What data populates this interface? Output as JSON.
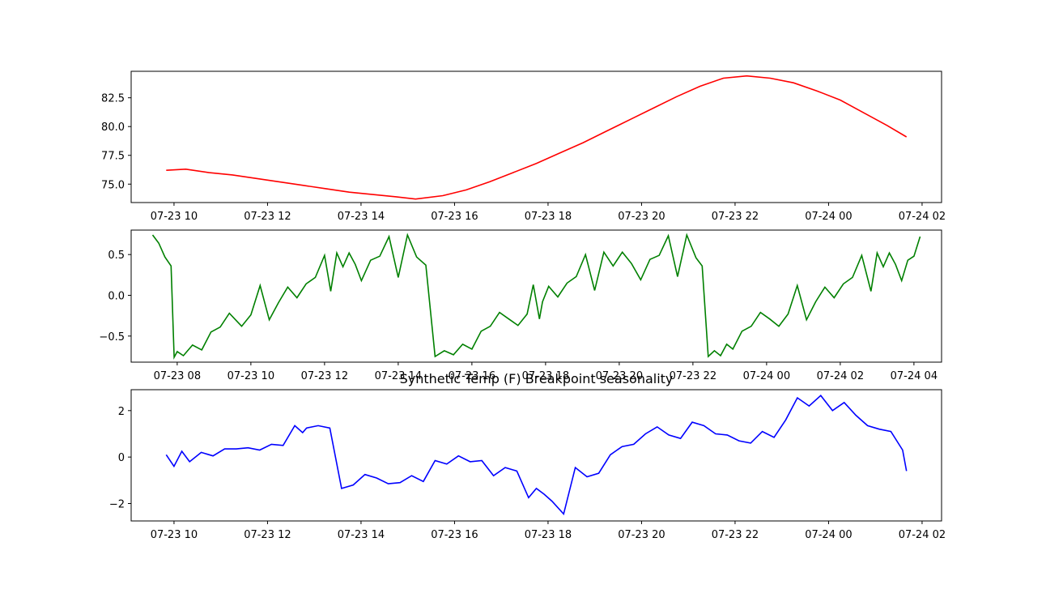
{
  "chart_data": [
    {
      "type": "line",
      "title": "",
      "xlabel": "",
      "ylabel": "",
      "color": "#ff0000",
      "x_axis_type": "datetime",
      "xlim": [
        "2018-07-23T09:05",
        "2018-07-24T02:25"
      ],
      "ylim": [
        73.4,
        84.8
      ],
      "x_tick_labels": [
        "07-23 10",
        "07-23 12",
        "07-23 14",
        "07-23 16",
        "07-23 18",
        "07-23 20",
        "07-23 22",
        "07-24 00",
        "07-24 02"
      ],
      "x_ticks": [
        "2018-07-23T10:00",
        "2018-07-23T12:00",
        "2018-07-23T14:00",
        "2018-07-23T16:00",
        "2018-07-23T18:00",
        "2018-07-23T20:00",
        "2018-07-23T22:00",
        "2018-07-24T00:00",
        "2018-07-24T02:00"
      ],
      "y_ticks": [
        75.0,
        77.5,
        80.0,
        82.5
      ],
      "y_tick_labels": [
        "75.0",
        "77.5",
        "80.0",
        "82.5"
      ],
      "series": [
        {
          "x": [
            "2018-07-23T09:50",
            "2018-07-23T10:15",
            "2018-07-23T10:45",
            "2018-07-23T11:15",
            "2018-07-23T11:45",
            "2018-07-23T12:15",
            "2018-07-23T12:45",
            "2018-07-23T13:15",
            "2018-07-23T13:45",
            "2018-07-23T14:15",
            "2018-07-23T14:45",
            "2018-07-23T15:10",
            "2018-07-23T15:45",
            "2018-07-23T16:15",
            "2018-07-23T16:45",
            "2018-07-23T17:15",
            "2018-07-23T17:45",
            "2018-07-23T18:15",
            "2018-07-23T18:45",
            "2018-07-23T19:15",
            "2018-07-23T19:45",
            "2018-07-23T20:15",
            "2018-07-23T20:45",
            "2018-07-23T21:15",
            "2018-07-23T21:45",
            "2018-07-23T22:15",
            "2018-07-23T22:45",
            "2018-07-23T23:15",
            "2018-07-23T23:45",
            "2018-07-24T00:15",
            "2018-07-24T00:45",
            "2018-07-24T01:15",
            "2018-07-24T01:40"
          ],
          "values": [
            76.2,
            76.3,
            76.0,
            75.8,
            75.5,
            75.2,
            74.9,
            74.6,
            74.3,
            74.1,
            73.9,
            73.7,
            74.0,
            74.5,
            75.2,
            76.0,
            76.8,
            77.7,
            78.6,
            79.6,
            80.6,
            81.6,
            82.6,
            83.5,
            84.2,
            84.4,
            84.2,
            83.8,
            83.1,
            82.3,
            81.2,
            80.1,
            79.1
          ]
        }
      ]
    },
    {
      "type": "line",
      "title": "",
      "xlabel": "",
      "ylabel": "",
      "color": "#008000",
      "x_axis_type": "datetime",
      "xlim": [
        "2018-07-23T06:45",
        "2018-07-24T04:45"
      ],
      "ylim": [
        -0.82,
        0.8
      ],
      "x_tick_labels": [
        "07-23 08",
        "07-23 10",
        "07-23 12",
        "07-23 14",
        "07-23 16",
        "07-23 18",
        "07-23 20",
        "07-23 22",
        "07-24 00",
        "07-24 02",
        "07-24 04"
      ],
      "x_ticks": [
        "2018-07-23T08:00",
        "2018-07-23T10:00",
        "2018-07-23T12:00",
        "2018-07-23T14:00",
        "2018-07-23T16:00",
        "2018-07-23T18:00",
        "2018-07-23T20:00",
        "2018-07-23T22:00",
        "2018-07-24T00:00",
        "2018-07-24T02:00",
        "2018-07-24T04:00"
      ],
      "y_ticks": [
        -0.5,
        0.0,
        0.5
      ],
      "y_tick_labels": [
        "−0.5",
        "0.0",
        "0.5"
      ],
      "series": [
        {
          "x": [
            "2018-07-23T07:20",
            "2018-07-23T07:30",
            "2018-07-23T07:40",
            "2018-07-23T07:50",
            "2018-07-23T07:55",
            "2018-07-23T08:00",
            "2018-07-23T08:10",
            "2018-07-23T08:25",
            "2018-07-23T08:40",
            "2018-07-23T08:55",
            "2018-07-23T09:10",
            "2018-07-23T09:25",
            "2018-07-23T09:35",
            "2018-07-23T09:45",
            "2018-07-23T10:00",
            "2018-07-23T10:15",
            "2018-07-23T10:30",
            "2018-07-23T10:45",
            "2018-07-23T11:00",
            "2018-07-23T11:15",
            "2018-07-23T11:30",
            "2018-07-23T11:45",
            "2018-07-23T12:00",
            "2018-07-23T12:10",
            "2018-07-23T12:20",
            "2018-07-23T12:30",
            "2018-07-23T12:40",
            "2018-07-23T12:50",
            "2018-07-23T13:00",
            "2018-07-23T13:15",
            "2018-07-23T13:30",
            "2018-07-23T13:45",
            "2018-07-23T14:00",
            "2018-07-23T14:15",
            "2018-07-23T14:30",
            "2018-07-23T14:45",
            "2018-07-23T15:00",
            "2018-07-23T15:15",
            "2018-07-23T15:30",
            "2018-07-23T15:45",
            "2018-07-23T16:00",
            "2018-07-23T16:15",
            "2018-07-23T16:30",
            "2018-07-23T16:45",
            "2018-07-23T17:00",
            "2018-07-23T17:15",
            "2018-07-23T17:30",
            "2018-07-23T17:40",
            "2018-07-23T17:50",
            "2018-07-23T17:55",
            "2018-07-23T18:05",
            "2018-07-23T18:20",
            "2018-07-23T18:35",
            "2018-07-23T18:50",
            "2018-07-23T19:05",
            "2018-07-23T19:20",
            "2018-07-23T19:35",
            "2018-07-23T19:50",
            "2018-07-23T20:05",
            "2018-07-23T20:20",
            "2018-07-23T20:35",
            "2018-07-23T20:50",
            "2018-07-23T21:05",
            "2018-07-23T21:20",
            "2018-07-23T21:35",
            "2018-07-23T21:50",
            "2018-07-23T22:05",
            "2018-07-23T22:15",
            "2018-07-23T22:25",
            "2018-07-23T22:35",
            "2018-07-23T22:45",
            "2018-07-23T22:55",
            "2018-07-23T23:05",
            "2018-07-23T23:20",
            "2018-07-23T23:35",
            "2018-07-23T23:50",
            "2018-07-24T00:05",
            "2018-07-24T00:20",
            "2018-07-24T00:35",
            "2018-07-24T00:50",
            "2018-07-24T01:05",
            "2018-07-24T01:20",
            "2018-07-24T01:35",
            "2018-07-24T01:50",
            "2018-07-24T02:05",
            "2018-07-24T02:20",
            "2018-07-24T02:35",
            "2018-07-24T02:50",
            "2018-07-24T03:00",
            "2018-07-24T03:10",
            "2018-07-24T03:20",
            "2018-07-24T03:30",
            "2018-07-24T03:40",
            "2018-07-24T03:50",
            "2018-07-24T04:00",
            "2018-07-24T04:10"
          ],
          "values": [
            0.74,
            0.64,
            0.47,
            0.36,
            -0.76,
            -0.69,
            -0.74,
            -0.61,
            -0.67,
            -0.45,
            -0.39,
            -0.22,
            -0.3,
            -0.38,
            -0.24,
            0.12,
            -0.3,
            -0.09,
            0.1,
            -0.03,
            0.14,
            0.22,
            0.49,
            0.05,
            0.52,
            0.35,
            0.52,
            0.38,
            0.18,
            0.43,
            0.48,
            0.72,
            0.22,
            0.74,
            0.47,
            0.37,
            -0.75,
            -0.68,
            -0.73,
            -0.6,
            -0.66,
            -0.44,
            -0.38,
            -0.21,
            -0.29,
            -0.37,
            -0.23,
            0.13,
            -0.29,
            -0.08,
            0.11,
            -0.02,
            0.15,
            0.23,
            0.5,
            0.06,
            0.53,
            0.36,
            0.53,
            0.39,
            0.19,
            0.44,
            0.49,
            0.73,
            0.23,
            0.74,
            0.46,
            0.36,
            -0.75,
            -0.68,
            -0.74,
            -0.6,
            -0.66,
            -0.44,
            -0.38,
            -0.21,
            -0.29,
            -0.38,
            -0.23,
            0.12,
            -0.3,
            -0.08,
            0.1,
            -0.03,
            0.14,
            0.22,
            0.49,
            0.05,
            0.52,
            0.35,
            0.52,
            0.38,
            0.18,
            0.43,
            0.48,
            0.72
          ]
        }
      ]
    },
    {
      "type": "line",
      "title": "Synthetic Temp (F) Breakpoint seasonality",
      "xlabel": "",
      "ylabel": "",
      "color": "#0000ff",
      "x_axis_type": "datetime",
      "xlim": [
        "2018-07-23T09:05",
        "2018-07-24T02:25"
      ],
      "ylim": [
        -2.75,
        2.9
      ],
      "x_tick_labels": [
        "07-23 10",
        "07-23 12",
        "07-23 14",
        "07-23 16",
        "07-23 18",
        "07-23 20",
        "07-23 22",
        "07-24 00",
        "07-24 02"
      ],
      "x_ticks": [
        "2018-07-23T10:00",
        "2018-07-23T12:00",
        "2018-07-23T14:00",
        "2018-07-23T16:00",
        "2018-07-23T18:00",
        "2018-07-23T20:00",
        "2018-07-23T22:00",
        "2018-07-24T00:00",
        "2018-07-24T02:00"
      ],
      "y_ticks": [
        -2,
        0,
        2
      ],
      "y_tick_labels": [
        "−2",
        "0",
        "2"
      ],
      "series": [
        {
          "x": [
            "2018-07-23T09:50",
            "2018-07-23T10:00",
            "2018-07-23T10:10",
            "2018-07-23T10:20",
            "2018-07-23T10:35",
            "2018-07-23T10:50",
            "2018-07-23T11:05",
            "2018-07-23T11:20",
            "2018-07-23T11:35",
            "2018-07-23T11:50",
            "2018-07-23T12:05",
            "2018-07-23T12:20",
            "2018-07-23T12:35",
            "2018-07-23T12:45",
            "2018-07-23T12:50",
            "2018-07-23T13:05",
            "2018-07-23T13:20",
            "2018-07-23T13:35",
            "2018-07-23T13:50",
            "2018-07-23T14:05",
            "2018-07-23T14:20",
            "2018-07-23T14:35",
            "2018-07-23T14:50",
            "2018-07-23T15:05",
            "2018-07-23T15:20",
            "2018-07-23T15:35",
            "2018-07-23T15:50",
            "2018-07-23T16:05",
            "2018-07-23T16:20",
            "2018-07-23T16:35",
            "2018-07-23T16:50",
            "2018-07-23T17:05",
            "2018-07-23T17:20",
            "2018-07-23T17:35",
            "2018-07-23T17:45",
            "2018-07-23T17:55",
            "2018-07-23T18:05",
            "2018-07-23T18:20",
            "2018-07-23T18:35",
            "2018-07-23T18:50",
            "2018-07-23T19:05",
            "2018-07-23T19:20",
            "2018-07-23T19:35",
            "2018-07-23T19:50",
            "2018-07-23T20:05",
            "2018-07-23T20:20",
            "2018-07-23T20:35",
            "2018-07-23T20:50",
            "2018-07-23T21:05",
            "2018-07-23T21:20",
            "2018-07-23T21:35",
            "2018-07-23T21:50",
            "2018-07-23T22:05",
            "2018-07-23T22:20",
            "2018-07-23T22:35",
            "2018-07-23T22:50",
            "2018-07-23T23:05",
            "2018-07-23T23:20",
            "2018-07-23T23:35",
            "2018-07-23T23:50",
            "2018-07-24T00:05",
            "2018-07-24T00:20",
            "2018-07-24T00:35",
            "2018-07-24T00:50",
            "2018-07-24T01:05",
            "2018-07-24T01:20",
            "2018-07-24T01:35",
            "2018-07-24T01:40"
          ],
          "values": [
            0.1,
            -0.4,
            0.25,
            -0.2,
            0.2,
            0.05,
            0.35,
            0.35,
            0.4,
            0.3,
            0.55,
            0.5,
            1.35,
            1.05,
            1.25,
            1.35,
            1.25,
            -1.35,
            -1.2,
            -0.75,
            -0.9,
            -1.15,
            -1.1,
            -0.8,
            -1.05,
            -0.15,
            -0.3,
            0.05,
            -0.2,
            -0.15,
            -0.8,
            -0.45,
            -0.6,
            -1.75,
            -1.35,
            -1.6,
            -1.9,
            -2.45,
            -0.45,
            -0.85,
            -0.7,
            0.1,
            0.45,
            0.55,
            1.0,
            1.3,
            0.95,
            0.8,
            1.5,
            1.35,
            1.0,
            0.95,
            0.7,
            0.6,
            1.1,
            0.85,
            1.6,
            2.55,
            2.2,
            2.65,
            2.0,
            2.35,
            1.8,
            1.35,
            1.2,
            1.1,
            0.3,
            -0.6
          ]
        }
      ]
    }
  ]
}
